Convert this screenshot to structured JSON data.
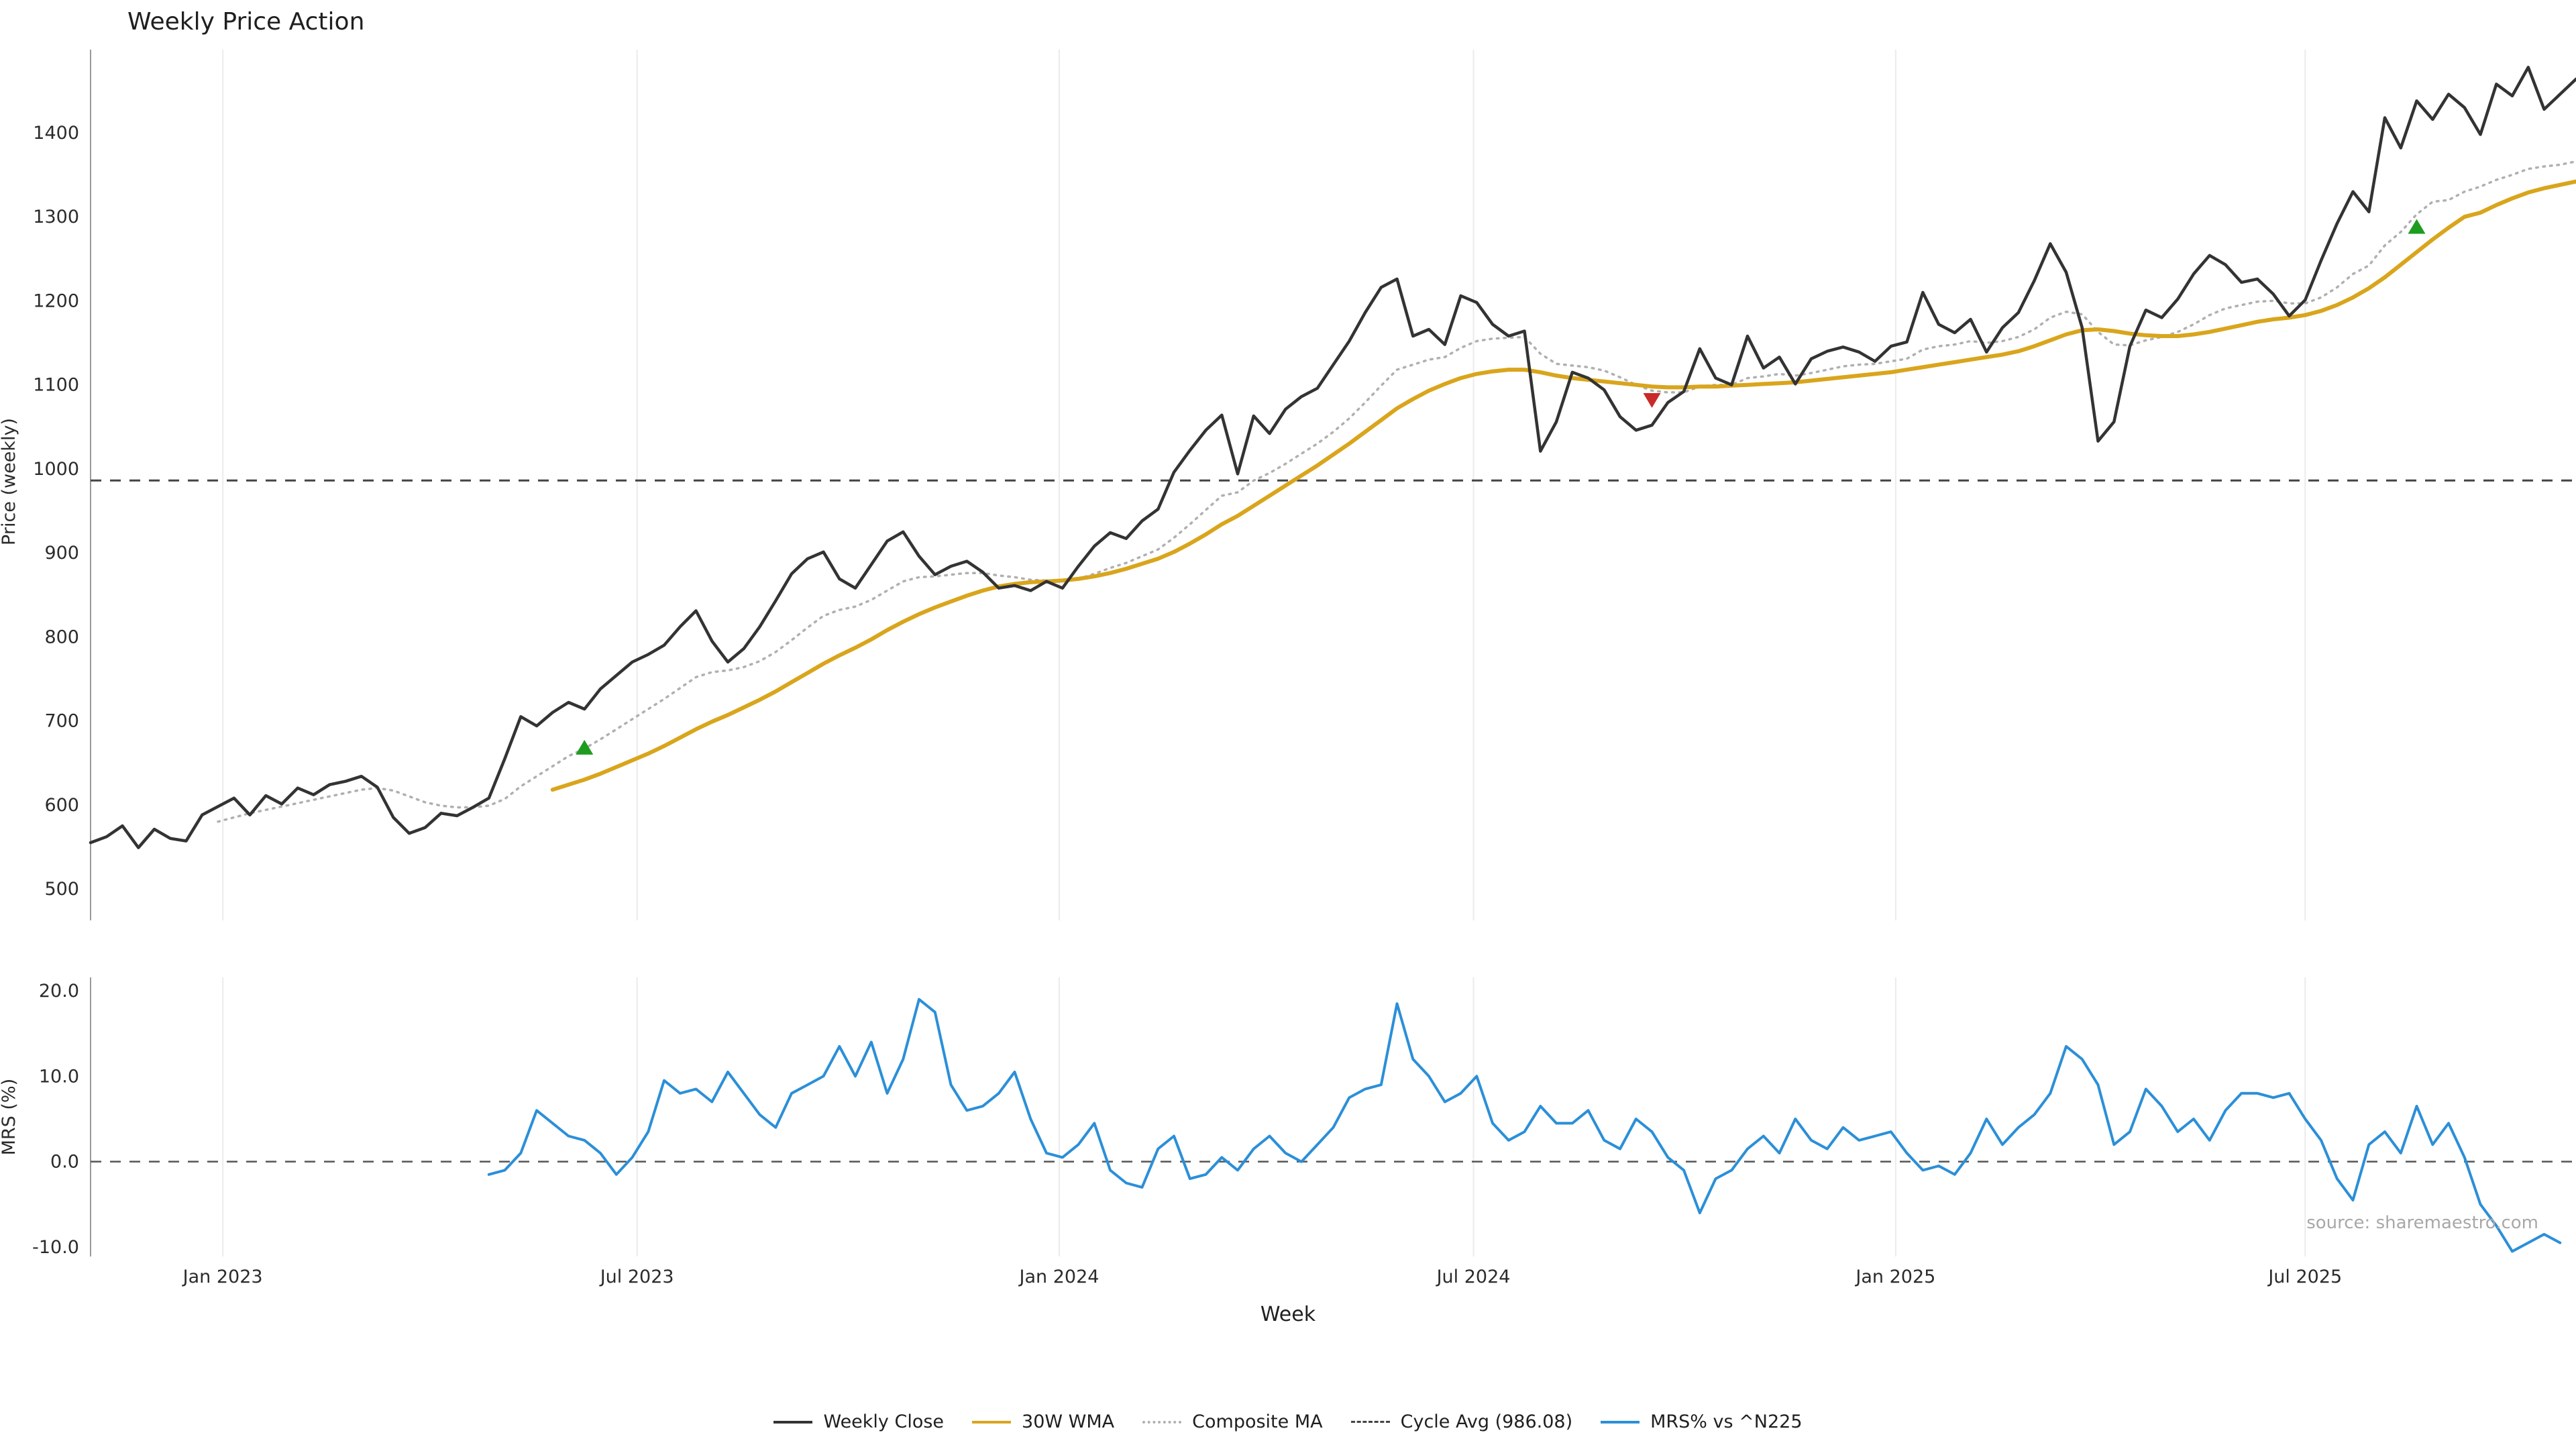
{
  "title": "Weekly Price Action",
  "source": "source: sharemaestro.com",
  "legend": {
    "items": [
      {
        "label": "Weekly Close",
        "color": "#333333",
        "style": "solid"
      },
      {
        "label": "30W WMA",
        "color": "#d9a51c",
        "style": "solid"
      },
      {
        "label": "Composite MA",
        "color": "#b0b0b0",
        "style": "dotted"
      },
      {
        "label": "Cycle Avg (986.08)",
        "color": "#444444",
        "style": "dashed"
      },
      {
        "label": "MRS% vs ^N225",
        "color": "#2b8fd8",
        "style": "solid"
      }
    ]
  },
  "chart_data": {
    "type": "line",
    "x_axis": {
      "label": "Week",
      "unit": "week_index",
      "range_weeks": [
        0,
        156
      ],
      "tick_weeks": [
        8.3,
        34.3,
        60.8,
        86.8,
        113.3,
        139
      ],
      "tick_labels": [
        "Jan 2023",
        "Jul 2023",
        "Jan 2024",
        "Jul 2024",
        "Jan 2025",
        "Jul 2025"
      ],
      "grid": true
    },
    "panels": [
      {
        "name": "price",
        "y_label": "Price (weekly)",
        "y_ticks": [
          500,
          600,
          700,
          800,
          900,
          1000,
          1100,
          1200,
          1300,
          1400
        ],
        "y_range": [
          463,
          1500
        ],
        "reference_line": {
          "name": "Cycle Avg",
          "value": 986.08,
          "style": "dashed",
          "color": "#444444"
        },
        "signals": {
          "buy": [
            {
              "week": 31,
              "price": 667
            },
            {
              "week": 146,
              "price": 1287
            }
          ],
          "sell": [
            {
              "week": 98,
              "price": 1083
            }
          ],
          "buy_color": "#1f9c1f",
          "sell_color": "#c92a2a"
        },
        "series": [
          {
            "name": "Composite MA",
            "color": "#b0b0b0",
            "style": "dotted",
            "width": 3.5,
            "start_week": 8,
            "values": [
              580,
              585,
              590,
              594,
              598,
              602,
              606,
              610,
              614,
              618,
              620,
              617,
              610,
              603,
              599,
              597,
              597,
              599,
              607,
              622,
              634,
              646,
              658,
              667,
              678,
              690,
              702,
              714,
              726,
              739,
              752,
              758,
              760,
              764,
              771,
              782,
              796,
              811,
              825,
              832,
              836,
              844,
              855,
              866,
              871,
              872,
              874,
              876,
              876,
              873,
              871,
              868,
              867,
              866,
              869,
              875,
              882,
              888,
              896,
              904,
              918,
              934,
              951,
              968,
              972,
              986,
              995,
              1006,
              1018,
              1030,
              1044,
              1060,
              1079,
              1099,
              1118,
              1124,
              1130,
              1133,
              1144,
              1152,
              1155,
              1156,
              1157,
              1137,
              1125,
              1123,
              1121,
              1117,
              1109,
              1100,
              1093,
              1091,
              1091,
              1098,
              1100,
              1100,
              1108,
              1110,
              1113,
              1111,
              1114,
              1118,
              1122,
              1124,
              1125,
              1128,
              1131,
              1142,
              1146,
              1148,
              1152,
              1150,
              1152,
              1157,
              1166,
              1180,
              1187,
              1184,
              1163,
              1148,
              1147,
              1153,
              1157,
              1163,
              1172,
              1183,
              1191,
              1195,
              1199,
              1200,
              1197,
              1197,
              1204,
              1216,
              1232,
              1242,
              1266,
              1282,
              1303,
              1318,
              1320,
              1330,
              1336,
              1344,
              1350,
              1357,
              1360,
              1362,
              1366
            ]
          },
          {
            "name": "30W WMA",
            "color": "#d9a51c",
            "style": "solid",
            "width": 6,
            "start_week": 29,
            "values": [
              618,
              624,
              630,
              637,
              645,
              653,
              661,
              670,
              680,
              690,
              699,
              707,
              716,
              725,
              735,
              746,
              757,
              768,
              778,
              787,
              797,
              808,
              818,
              827,
              835,
              842,
              849,
              855,
              860,
              863,
              865,
              866,
              867,
              869,
              872,
              876,
              881,
              887,
              893,
              901,
              911,
              922,
              934,
              944,
              956,
              968,
              980,
              992,
              1004,
              1017,
              1030,
              1044,
              1058,
              1072,
              1083,
              1093,
              1101,
              1108,
              1113,
              1116,
              1118,
              1118,
              1115,
              1111,
              1108,
              1106,
              1104,
              1102,
              1100,
              1098,
              1097,
              1097,
              1098,
              1098,
              1099,
              1100,
              1101,
              1102,
              1103,
              1105,
              1107,
              1109,
              1111,
              1113,
              1115,
              1118,
              1121,
              1124,
              1127,
              1130,
              1133,
              1136,
              1140,
              1146,
              1153,
              1160,
              1165,
              1166,
              1164,
              1161,
              1159,
              1158,
              1158,
              1160,
              1163,
              1167,
              1171,
              1175,
              1178,
              1180,
              1183,
              1188,
              1195,
              1204,
              1215,
              1228,
              1243,
              1258,
              1273,
              1287,
              1300,
              1305,
              1314,
              1322,
              1329,
              1334,
              1338,
              1342
            ]
          },
          {
            "name": "Weekly Close",
            "color": "#333333",
            "style": "solid",
            "width": 4.5,
            "start_week": 0,
            "values": [
              555,
              562,
              575,
              549,
              571,
              560,
              557,
              588,
              598,
              608,
              588,
              611,
              601,
              620,
              612,
              624,
              628,
              634,
              621,
              585,
              566,
              573,
              590,
              587,
              597,
              608,
              655,
              705,
              694,
              710,
              722,
              714,
              738,
              754,
              770,
              779,
              790,
              812,
              831,
              795,
              770,
              786,
              812,
              843,
              875,
              893,
              901,
              869,
              858,
              886,
              914,
              925,
              896,
              874,
              884,
              890,
              877,
              858,
              861,
              855,
              866,
              858,
              884,
              908,
              924,
              917,
              938,
              952,
              996,
              1022,
              1046,
              1064,
              994,
              1063,
              1042,
              1071,
              1086,
              1096,
              1124,
              1152,
              1186,
              1216,
              1226,
              1158,
              1166,
              1148,
              1206,
              1198,
              1172,
              1158,
              1164,
              1021,
              1056,
              1115,
              1108,
              1094,
              1062,
              1046,
              1052,
              1079,
              1092,
              1143,
              1108,
              1100,
              1158,
              1120,
              1133,
              1101,
              1131,
              1140,
              1145,
              1139,
              1128,
              1146,
              1151,
              1210,
              1172,
              1162,
              1178,
              1139,
              1168,
              1186,
              1224,
              1268,
              1234,
              1168,
              1033,
              1056,
              1146,
              1189,
              1180,
              1202,
              1232,
              1254,
              1243,
              1222,
              1226,
              1208,
              1182,
              1201,
              1248,
              1292,
              1330,
              1306,
              1418,
              1382,
              1438,
              1416,
              1446,
              1430,
              1398,
              1458,
              1444,
              1478,
              1428,
              1446,
              1464
            ]
          }
        ]
      },
      {
        "name": "mrs",
        "y_label": "MRS (%)",
        "y_ticks": [
          -10.0,
          0.0,
          10.0,
          20.0
        ],
        "y_tick_labels": [
          "-10.0",
          "0.0",
          "10.0",
          "20.0"
        ],
        "y_range": [
          -13.5,
          22
        ],
        "reference_line": {
          "name": "zero",
          "value": 0,
          "style": "dashed",
          "color": "#555555"
        },
        "series": [
          {
            "name": "MRS% vs ^N225",
            "color": "#2b8fd8",
            "style": "solid",
            "width": 4,
            "start_week": 25,
            "values": [
              -1.5,
              -1.0,
              1.0,
              6.0,
              4.5,
              3.0,
              2.5,
              1.0,
              -1.5,
              0.5,
              3.5,
              9.5,
              8.0,
              8.5,
              7.0,
              10.5,
              8.0,
              5.5,
              4.0,
              8.0,
              9.0,
              10.0,
              13.5,
              10.0,
              14.0,
              8.0,
              12.0,
              19.0,
              17.5,
              9.0,
              6.0,
              6.5,
              8.0,
              10.5,
              5.0,
              1.0,
              0.5,
              2.0,
              4.5,
              -1.0,
              -2.5,
              -3.0,
              1.5,
              3.0,
              -2.0,
              -1.5,
              0.5,
              -1.0,
              1.5,
              3.0,
              1.0,
              0.0,
              2.0,
              4.0,
              7.5,
              8.5,
              9.0,
              18.5,
              12.0,
              10.0,
              7.0,
              8.0,
              10.0,
              4.5,
              2.5,
              3.5,
              6.5,
              4.5,
              4.5,
              6.0,
              2.5,
              1.5,
              5.0,
              3.5,
              0.5,
              -1.0,
              -6.0,
              -2.0,
              -1.0,
              1.5,
              3.0,
              1.0,
              5.0,
              2.5,
              1.5,
              4.0,
              2.5,
              3.0,
              3.5,
              1.0,
              -1.0,
              -0.5,
              -1.5,
              1.0,
              5.0,
              2.0,
              4.0,
              5.5,
              8.0,
              13.5,
              12.0,
              9.0,
              2.0,
              3.5,
              8.5,
              6.5,
              3.5,
              5.0,
              2.5,
              6.0,
              8.0,
              8.0,
              7.5,
              8.0,
              5.0,
              2.5,
              -2.0,
              -4.5,
              2.0,
              3.5,
              1.0,
              6.5,
              2.0,
              4.5,
              0.5,
              -5.0,
              -7.5,
              -10.5,
              -9.5,
              -8.5,
              -9.5
            ]
          }
        ]
      }
    ]
  }
}
